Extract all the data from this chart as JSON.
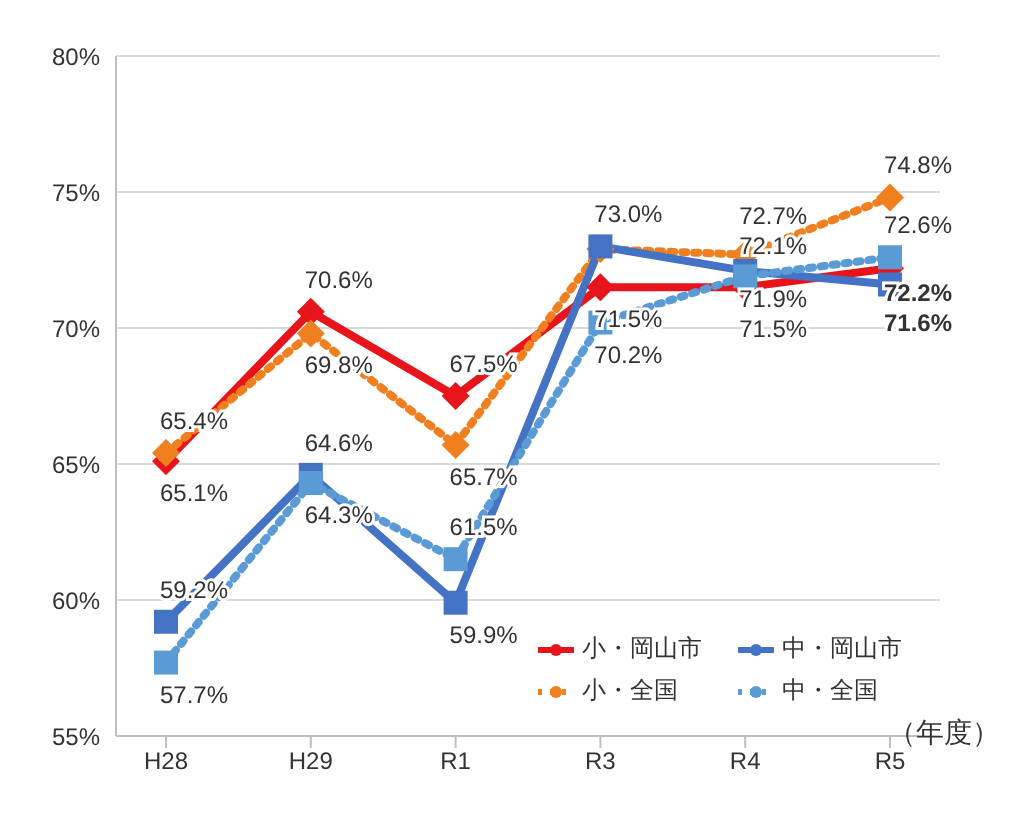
{
  "chart_data": {
    "type": "line",
    "xlabel": "（年度）",
    "categories": [
      "H28",
      "H29",
      "R1",
      "R3",
      "R4",
      "R5"
    ],
    "ylim": [
      55,
      80
    ],
    "yticks": [
      {
        "value": 55,
        "label": "55%"
      },
      {
        "value": 60,
        "label": "60%"
      },
      {
        "value": 65,
        "label": "65%"
      },
      {
        "value": 70,
        "label": "70%"
      },
      {
        "value": 75,
        "label": "75%"
      },
      {
        "value": 80,
        "label": "80%"
      }
    ],
    "grid": "y",
    "legend": "bottom right",
    "series": [
      {
        "name": "小・岡山市",
        "color": "#e8141b",
        "values": [
          65.1,
          70.6,
          67.5,
          71.5,
          71.5,
          72.2
        ],
        "value_labels": [
          "65.1%",
          "70.6%",
          "67.5%",
          "71.5%",
          "71.5%",
          "72.2%"
        ],
        "marker": "diamond",
        "line_style": "solid"
      },
      {
        "name": "小・全国",
        "color": "#f07f20",
        "values": [
          65.4,
          69.8,
          65.7,
          72.9,
          72.7,
          74.8
        ],
        "value_labels": [
          "65.4%",
          "69.8%",
          "65.7%",
          null,
          "72.7%",
          "74.8%"
        ],
        "marker": "diamond",
        "line_style": "dotted"
      },
      {
        "name": "中・岡山市",
        "color": "#4472c4",
        "values": [
          59.2,
          64.6,
          59.9,
          73.0,
          72.1,
          71.6
        ],
        "value_labels": [
          "59.2%",
          "64.6%",
          "59.9%",
          "73.0%",
          "72.1%",
          "71.6%"
        ],
        "marker": "square",
        "line_style": "solid"
      },
      {
        "name": "中・全国",
        "color": "#5b9bd5",
        "values": [
          57.7,
          64.3,
          61.5,
          70.2,
          71.9,
          72.6
        ],
        "value_labels": [
          "57.7%",
          "64.3%",
          "61.5%",
          "70.2%",
          "71.9%",
          "72.6%"
        ],
        "marker": "square",
        "line_style": "dotted"
      }
    ]
  }
}
